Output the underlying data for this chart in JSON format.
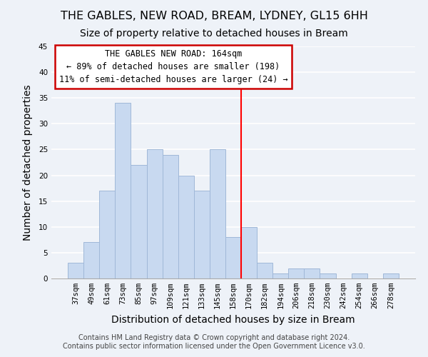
{
  "title": "THE GABLES, NEW ROAD, BREAM, LYDNEY, GL15 6HH",
  "subtitle": "Size of property relative to detached houses in Bream",
  "xlabel": "Distribution of detached houses by size in Bream",
  "ylabel": "Number of detached properties",
  "bar_labels": [
    "37sqm",
    "49sqm",
    "61sqm",
    "73sqm",
    "85sqm",
    "97sqm",
    "109sqm",
    "121sqm",
    "133sqm",
    "145sqm",
    "158sqm",
    "170sqm",
    "182sqm",
    "194sqm",
    "206sqm",
    "218sqm",
    "230sqm",
    "242sqm",
    "254sqm",
    "266sqm",
    "278sqm"
  ],
  "bar_values": [
    3,
    7,
    17,
    34,
    22,
    25,
    24,
    20,
    17,
    25,
    8,
    10,
    3,
    1,
    2,
    2,
    1,
    0,
    1,
    0,
    1
  ],
  "bar_color": "#c8d9f0",
  "bar_edge_color": "#a0b8d8",
  "vline_color": "red",
  "annotation_title": "THE GABLES NEW ROAD: 164sqm",
  "annotation_line1": "← 89% of detached houses are smaller (198)",
  "annotation_line2": "11% of semi-detached houses are larger (24) →",
  "annotation_box_color": "#ffffff",
  "annotation_box_edge": "#cc0000",
  "ylim": [
    0,
    45
  ],
  "yticks": [
    0,
    5,
    10,
    15,
    20,
    25,
    30,
    35,
    40,
    45
  ],
  "footer1": "Contains HM Land Registry data © Crown copyright and database right 2024.",
  "footer2": "Contains public sector information licensed under the Open Government Licence v3.0.",
  "bg_color": "#eef2f8",
  "grid_color": "#ffffff",
  "title_fontsize": 11.5,
  "subtitle_fontsize": 10,
  "axis_label_fontsize": 10,
  "tick_fontsize": 7.5,
  "footer_fontsize": 7,
  "annotation_fontsize": 8.5
}
